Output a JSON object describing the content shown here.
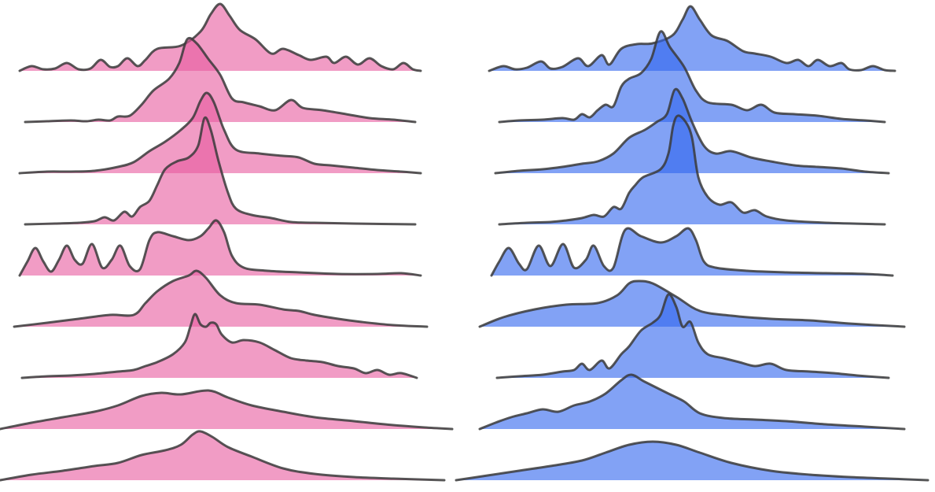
{
  "chart_data": [
    {
      "type": "ridgeline",
      "color": "#e75a9f",
      "xlim": [
        0,
        609
      ],
      "ylim": [
        0,
        140
      ],
      "series": [
        {
          "x": [
            25,
            40,
            55,
            70,
            85,
            100,
            115,
            128,
            140,
            150,
            162,
            175,
            185,
            200,
            230,
            255,
            268,
            280,
            292,
            305,
            325,
            345,
            360,
            380,
            395,
            415,
            425,
            440,
            455,
            470,
            485,
            500,
            513,
            525,
            535
          ],
          "values": [
            0,
            6,
            2,
            3,
            10,
            2,
            3,
            14,
            5,
            6,
            16,
            6,
            14,
            28,
            32,
            50,
            72,
            85,
            70,
            52,
            40,
            22,
            28,
            20,
            14,
            18,
            10,
            18,
            8,
            16,
            6,
            2,
            10,
            2,
            0
          ]
        },
        {
          "x": [
            32,
            60,
            90,
            110,
            125,
            140,
            150,
            165,
            180,
            195,
            215,
            228,
            238,
            250,
            265,
            280,
            295,
            310,
            330,
            350,
            370,
            385,
            410,
            440,
            470,
            500,
            528
          ],
          "values": [
            0,
            1,
            2,
            1,
            3,
            2,
            7,
            8,
            22,
            40,
            55,
            75,
            105,
            100,
            80,
            60,
            30,
            25,
            20,
            15,
            28,
            18,
            15,
            10,
            5,
            3,
            0
          ]
        },
        {
          "x": [
            25,
            60,
            90,
            120,
            150,
            170,
            190,
            210,
            230,
            245,
            255,
            263,
            272,
            285,
            300,
            330,
            360,
            380,
            400,
            420,
            450,
            480,
            510,
            535
          ],
          "values": [
            0,
            2,
            2,
            3,
            8,
            14,
            28,
            40,
            55,
            70,
            92,
            102,
            90,
            55,
            30,
            25,
            22,
            20,
            12,
            10,
            7,
            4,
            2,
            0
          ]
        },
        {
          "x": [
            32,
            70,
            100,
            120,
            133,
            145,
            158,
            168,
            178,
            190,
            200,
            210,
            225,
            240,
            252,
            260,
            268,
            278,
            290,
            300,
            320,
            345,
            370,
            400,
            450,
            528
          ],
          "values": [
            0,
            1,
            2,
            4,
            9,
            5,
            16,
            10,
            22,
            30,
            50,
            70,
            80,
            85,
            100,
            135,
            120,
            80,
            40,
            20,
            12,
            8,
            3,
            2,
            1,
            0
          ]
        },
        {
          "x": [
            25,
            35,
            45,
            55,
            65,
            75,
            85,
            95,
            105,
            117,
            130,
            142,
            153,
            165,
            178,
            190,
            200,
            220,
            240,
            255,
            265,
            275,
            285,
            295,
            310,
            340,
            380,
            430,
            480,
            510,
            535
          ],
          "values": [
            0,
            18,
            35,
            18,
            5,
            20,
            38,
            20,
            15,
            40,
            10,
            20,
            38,
            12,
            8,
            45,
            55,
            50,
            45,
            50,
            60,
            70,
            55,
            25,
            10,
            6,
            4,
            2,
            2,
            3,
            0
          ]
        },
        {
          "x": [
            18,
            60,
            100,
            140,
            170,
            185,
            200,
            220,
            240,
            250,
            262,
            280,
            300,
            330,
            360,
            380,
            400,
            430,
            460,
            500,
            543
          ],
          "values": [
            0,
            5,
            10,
            15,
            15,
            30,
            45,
            58,
            65,
            71,
            62,
            40,
            30,
            28,
            22,
            20,
            15,
            10,
            6,
            2,
            0
          ]
        },
        {
          "x": [
            28,
            60,
            90,
            120,
            150,
            170,
            185,
            200,
            220,
            235,
            242,
            248,
            255,
            262,
            268,
            275,
            282,
            295,
            310,
            330,
            350,
            370,
            390,
            410,
            430,
            450,
            465,
            480,
            495,
            510,
            530
          ],
          "values": [
            0,
            2,
            3,
            5,
            8,
            10,
            15,
            20,
            30,
            45,
            65,
            81,
            68,
            65,
            70,
            68,
            55,
            45,
            48,
            45,
            35,
            25,
            22,
            20,
            15,
            12,
            6,
            10,
            4,
            6,
            0
          ]
        },
        {
          "x": [
            0,
            40,
            80,
            120,
            150,
            180,
            205,
            230,
            265,
            290,
            320,
            360,
            400,
            450,
            500,
            540,
            575
          ],
          "values": [
            0,
            8,
            15,
            22,
            30,
            42,
            46,
            44,
            49,
            40,
            30,
            22,
            15,
            10,
            5,
            2,
            0
          ]
        },
        {
          "x": [
            0,
            40,
            80,
            120,
            150,
            180,
            210,
            230,
            245,
            255,
            270,
            290,
            320,
            360,
            400,
            450,
            500,
            565
          ],
          "values": [
            0,
            7,
            12,
            18,
            22,
            32,
            38,
            45,
            58,
            62,
            55,
            42,
            30,
            15,
            8,
            4,
            2,
            0
          ]
        }
      ]
    },
    {
      "type": "ridgeline",
      "color": "#2f64ee",
      "xlim": [
        0,
        609
      ],
      "ylim": [
        0,
        140
      ],
      "series": [
        {
          "x": [
            42,
            60,
            75,
            90,
            108,
            120,
            135,
            155,
            168,
            185,
            195,
            210,
            230,
            250,
            275,
            288,
            298,
            310,
            325,
            345,
            365,
            380,
            400,
            420,
            435,
            448,
            460,
            475,
            490,
            500,
            515,
            530,
            545,
            558
          ],
          "values": [
            0,
            6,
            2,
            4,
            12,
            3,
            5,
            16,
            6,
            20,
            8,
            28,
            34,
            35,
            45,
            65,
            82,
            65,
            45,
            38,
            25,
            22,
            18,
            10,
            14,
            6,
            14,
            6,
            10,
            2,
            1,
            6,
            1,
            0
          ]
        },
        {
          "x": [
            55,
            80,
            110,
            135,
            150,
            160,
            170,
            180,
            190,
            200,
            210,
            220,
            235,
            248,
            260,
            272,
            290,
            305,
            320,
            350,
            370,
            388,
            405,
            430,
            460,
            490,
            520,
            545
          ],
          "values": [
            0,
            2,
            3,
            5,
            3,
            10,
            6,
            15,
            22,
            20,
            45,
            55,
            62,
            80,
            115,
            95,
            70,
            40,
            25,
            22,
            15,
            22,
            12,
            10,
            8,
            4,
            2,
            0
          ]
        },
        {
          "x": [
            50,
            80,
            110,
            135,
            160,
            180,
            200,
            220,
            240,
            255,
            268,
            278,
            288,
            300,
            315,
            330,
            350,
            375,
            400,
            430,
            460,
            490,
            520,
            550
          ],
          "values": [
            0,
            3,
            5,
            8,
            12,
            15,
            25,
            45,
            55,
            65,
            75,
            106,
            95,
            65,
            35,
            25,
            28,
            20,
            15,
            10,
            8,
            6,
            2,
            0
          ]
        },
        {
          "x": [
            55,
            90,
            120,
            140,
            160,
            175,
            188,
            200,
            210,
            220,
            228,
            238,
            260,
            270,
            276,
            282,
            292,
            300,
            308,
            320,
            335,
            350,
            365,
            380,
            395,
            420,
            470,
            545
          ],
          "values": [
            0,
            2,
            3,
            5,
            8,
            12,
            10,
            22,
            20,
            40,
            50,
            60,
            70,
            90,
            125,
            138,
            130,
            110,
            60,
            35,
            25,
            28,
            15,
            18,
            10,
            5,
            2,
            0
          ]
        },
        {
          "x": [
            45,
            55,
            67,
            80,
            90,
            105,
            120,
            136,
            150,
            165,
            175,
            188,
            200,
            215,
            235,
            260,
            280,
            295,
            305,
            315,
            330,
            370,
            420,
            470,
            520,
            555
          ],
          "values": [
            0,
            18,
            35,
            15,
            8,
            38,
            12,
            40,
            10,
            20,
            38,
            12,
            10,
            58,
            50,
            42,
            50,
            60,
            45,
            18,
            10,
            6,
            4,
            3,
            2,
            0
          ]
        },
        {
          "x": [
            30,
            60,
            100,
            140,
            180,
            205,
            220,
            232,
            250,
            280,
            310,
            350,
            400,
            450,
            500,
            570
          ],
          "values": [
            0,
            12,
            22,
            28,
            30,
            40,
            55,
            58,
            55,
            38,
            20,
            14,
            10,
            8,
            4,
            0
          ]
        },
        {
          "x": [
            52,
            80,
            110,
            135,
            150,
            160,
            170,
            185,
            195,
            210,
            220,
            235,
            250,
            260,
            270,
            280,
            288,
            298,
            308,
            320,
            340,
            360,
            380,
            400,
            420,
            450,
            480,
            510,
            550
          ],
          "values": [
            0,
            2,
            4,
            8,
            10,
            18,
            10,
            22,
            12,
            30,
            40,
            60,
            70,
            80,
            106,
            90,
            65,
            71,
            45,
            30,
            25,
            20,
            15,
            18,
            10,
            8,
            6,
            3,
            0
          ]
        },
        {
          "x": [
            30,
            50,
            70,
            90,
            110,
            130,
            150,
            170,
            190,
            210,
            223,
            240,
            270,
            290,
            310,
            340,
            380,
            420,
            470,
            520,
            570
          ],
          "values": [
            0,
            8,
            15,
            20,
            25,
            22,
            30,
            35,
            45,
            62,
            69,
            60,
            45,
            35,
            20,
            14,
            12,
            10,
            6,
            3,
            0
          ]
        },
        {
          "x": [
            0,
            40,
            80,
            120,
            160,
            190,
            220,
            250,
            280,
            310,
            350,
            400,
            450,
            500,
            550,
            600
          ],
          "values": [
            0,
            6,
            12,
            18,
            25,
            35,
            45,
            49,
            45,
            35,
            22,
            12,
            7,
            4,
            2,
            0
          ]
        }
      ]
    }
  ]
}
